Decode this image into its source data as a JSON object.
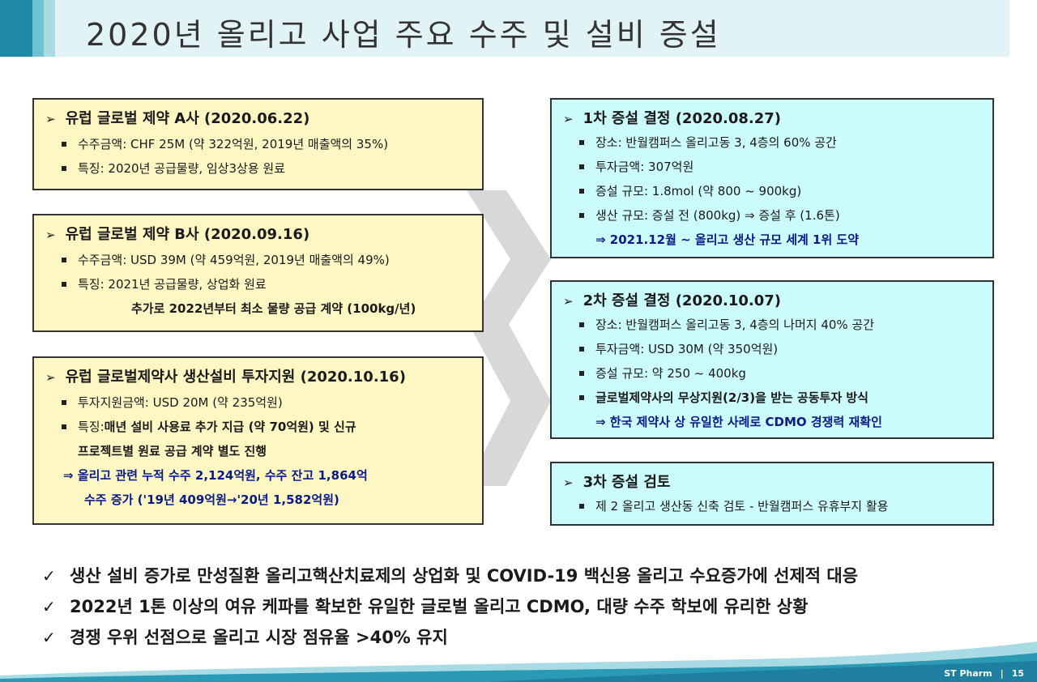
{
  "header": {
    "title": "2020년 올리고 사업 주요 수주 및 설비 증설"
  },
  "left_boxes": [
    {
      "title": "유럽 글로벌 제약 A사 (2020.06.22)",
      "items": [
        "수주금액: CHF 25M (약 322억원, 2019년 매출액의 35%)",
        "특징: 2020년 공급물량, 임상3상용 원료"
      ]
    },
    {
      "title": "유럽 글로벌 제약 B사 (2020.09.16)",
      "items": [
        "수주금액: USD 39M (약 459억원, 2019년 매출액의 49%)",
        "특징: 2021년 공급물량, 상업화 원료"
      ],
      "extra": "추가로 2022년부터 최소 물량 공급 계약 (100kg/년)"
    },
    {
      "title": "유럽 글로벌제약사 생산설비 투자지원 (2020.10.16)",
      "items": [
        "투자지원금액: USD 20M (약 235억원)"
      ],
      "feature_prefix": "특징: ",
      "feature_bold": "매년 설비 사용료 추가 지급 (약 70억원) 및 신규",
      "feature_line2": "프로젝트별 원료 공급 계약 별도 진행",
      "note_line1": "⇒ 올리고 관련 누적 수주 2,124억원, 수주 잔고 1,864억",
      "note_line2": "수주 증가 ('19년 409억원→'20년 1,582억원)"
    }
  ],
  "right_boxes": [
    {
      "title": "1차 증설 결정 (2020.08.27)",
      "items": [
        "장소: 반월캠퍼스 올리고동 3, 4층의 60% 공간",
        "투자금액: 307억원",
        "증설 규모: 1.8mol (약 800 ~ 900kg)",
        "생산 규모: 증설 전 (800kg) ⇒ 증설 후 (1.6톤)"
      ],
      "note": "⇒ 2021.12월 ~ 올리고 생산 규모 세계 1위 도약"
    },
    {
      "title": "2차 증설 결정 (2020.10.07)",
      "items": [
        "장소: 반월캠퍼스 올리고동 3, 4층의 나머지 40% 공간",
        "투자금액: USD 30M (약 350억원)",
        "증설 규모: 약 250 ~ 400kg"
      ],
      "bold_item": "글로벌제약사의 무상지원(2/3)을 받는 공동투자 방식",
      "note": "⇒ 한국 제약사 상 유일한 사례로 CDMO 경쟁력 재확인"
    },
    {
      "title": "3차 증설 검토",
      "items": [
        "제 2 올리고 생산동 신축 검토 - 반월캠퍼스 유휴부지 활용"
      ]
    }
  ],
  "bullets": [
    "생산 설비 증가로 만성질환 올리고핵산치료제의 상업화 및 COVID-19 백신용 올리고 수요증가에 선제적 대응",
    "2022년 1톤 이상의 여유 케파를 확보한 유일한 글로벌 올리고 CDMO, 대량 수주 학보에 유리한 상황",
    "경쟁 우위 선점으로 올리고 시장 점유율 >40% 유지"
  ],
  "footer": {
    "company": "ST Pharm",
    "separator": "|",
    "page": "15"
  },
  "colors": {
    "yellow_box": "#fdf7c4",
    "cyan_box": "#cbfbfb",
    "note_blue": "#0a1a8a",
    "header_teal": "#1f8aa6"
  },
  "icons": {
    "title_marker": "arrow-right-icon",
    "bullet_marker": "square-bullet-icon",
    "check_marker": "check-icon"
  }
}
